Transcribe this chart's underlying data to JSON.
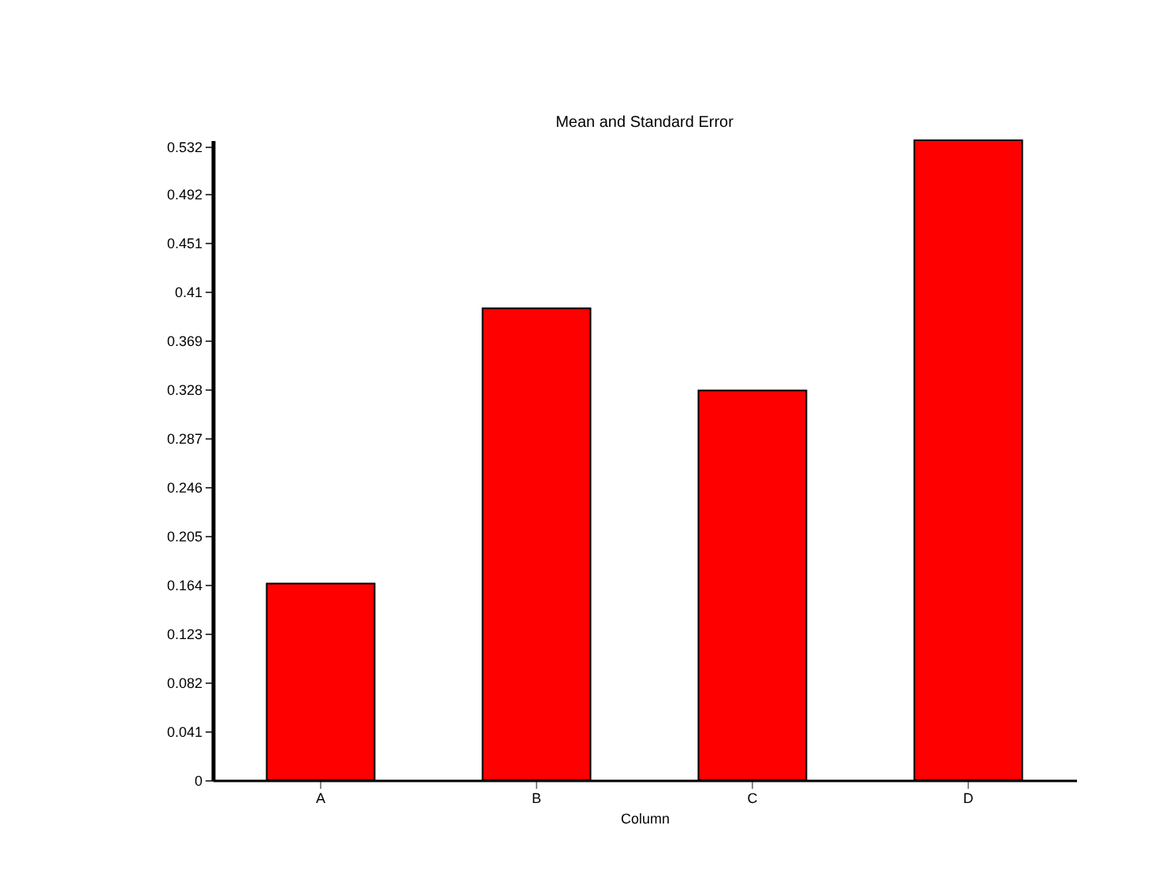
{
  "chart_data": {
    "type": "bar",
    "title": "Mean and Standard Error",
    "xlabel": "Column",
    "categories": [
      "A",
      "B",
      "C",
      "D"
    ],
    "values": [
      0.165,
      0.396,
      0.327,
      0.537
    ],
    "color": "#ff0000",
    "ylim": [
      0,
      0.537
    ],
    "yticks": [
      0,
      0.041,
      0.082,
      0.123,
      0.164,
      0.205,
      0.246,
      0.287,
      0.328,
      0.369,
      0.41,
      0.451,
      0.492,
      0.532
    ],
    "grid": false
  }
}
